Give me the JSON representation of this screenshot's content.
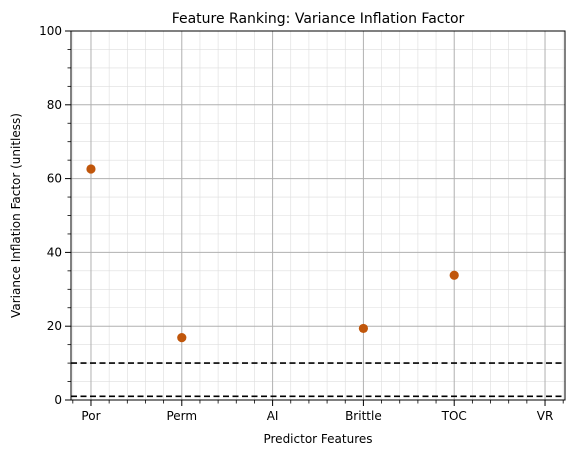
{
  "chart_data": {
    "type": "scatter",
    "title": "Feature Ranking: Variance Inflation Factor",
    "xlabel": "Predictor Features",
    "ylabel": "Variance Inflation Factor (unitless)",
    "categories": [
      "Por",
      "Perm",
      "AI",
      "Brittle",
      "TOC",
      "VR"
    ],
    "values": [
      62.6,
      16.9,
      null,
      19.4,
      33.8,
      null
    ],
    "ylim": [
      0,
      100
    ],
    "yticks": [
      0,
      20,
      40,
      60,
      80,
      100
    ],
    "reference_lines": [
      1,
      10
    ],
    "grid": true,
    "marker_color": "#c0560b",
    "reference_line_color": "#000000",
    "grid_color": "#b0b0b0"
  }
}
